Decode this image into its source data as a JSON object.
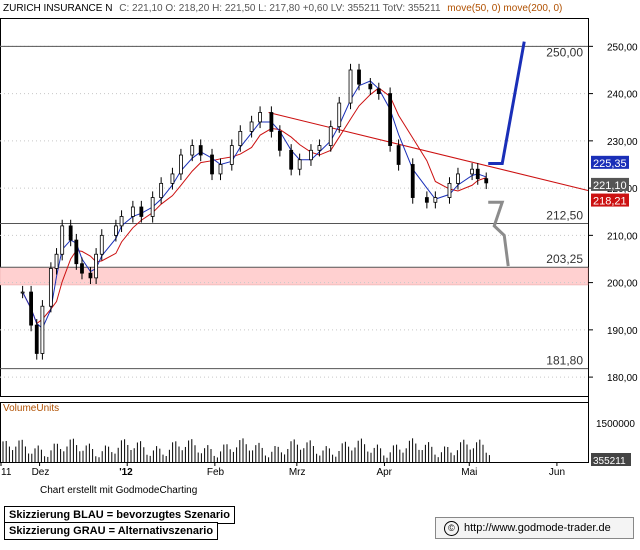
{
  "header": {
    "title": "ZURICH INSURANCE N",
    "quote": "C: 221,10 O: 218,20 H: 221,50 L: 217,80 +0,60 LV: 355211 TotV: 355211",
    "ma_labels": "move(50, 0) move(200, 0)"
  },
  "colors": {
    "candle": "#000000",
    "ma50": "#1a2fb8",
    "ma200": "#cc1111",
    "trendline": "#cc1111",
    "scenario_primary": "#1a2fb8",
    "scenario_alt": "#8c8c8c",
    "zone_fill": "#ffd0d0",
    "grid": "#c8c8c8"
  },
  "chart_data": {
    "type": "candlestick",
    "title": "ZURICH INSURANCE N",
    "ylim": [
      176,
      256
    ],
    "y_ticks": [
      180,
      190,
      200,
      210,
      220,
      230,
      240,
      250
    ],
    "x_labels": [
      "11",
      "Dez",
      "'12",
      "Feb",
      "Mrz",
      "Apr",
      "Mai",
      "Jun"
    ],
    "price_series": [
      {
        "date": "2011-11-25",
        "close": 198
      },
      {
        "date": "2011-11-28",
        "close": 191
      },
      {
        "date": "2011-11-30",
        "close": 185
      },
      {
        "date": "2011-12-02",
        "close": 195
      },
      {
        "date": "2011-12-05",
        "close": 203
      },
      {
        "date": "2011-12-07",
        "close": 206
      },
      {
        "date": "2011-12-09",
        "close": 212
      },
      {
        "date": "2011-12-12",
        "close": 209
      },
      {
        "date": "2011-12-14",
        "close": 204
      },
      {
        "date": "2011-12-16",
        "close": 202
      },
      {
        "date": "2011-12-19",
        "close": 201
      },
      {
        "date": "2011-12-21",
        "close": 206
      },
      {
        "date": "2011-12-23",
        "close": 210
      },
      {
        "date": "2011-12-28",
        "close": 212
      },
      {
        "date": "2011-12-30",
        "close": 214
      },
      {
        "date": "2012-01-03",
        "close": 216
      },
      {
        "date": "2012-01-06",
        "close": 214
      },
      {
        "date": "2012-01-10",
        "close": 218
      },
      {
        "date": "2012-01-13",
        "close": 221
      },
      {
        "date": "2012-01-17",
        "close": 223
      },
      {
        "date": "2012-01-20",
        "close": 227
      },
      {
        "date": "2012-01-24",
        "close": 229
      },
      {
        "date": "2012-01-27",
        "close": 227
      },
      {
        "date": "2012-01-31",
        "close": 223
      },
      {
        "date": "2012-02-03",
        "close": 225
      },
      {
        "date": "2012-02-07",
        "close": 229
      },
      {
        "date": "2012-02-10",
        "close": 232
      },
      {
        "date": "2012-02-14",
        "close": 234
      },
      {
        "date": "2012-02-17",
        "close": 236
      },
      {
        "date": "2012-02-21",
        "close": 232
      },
      {
        "date": "2012-02-24",
        "close": 228
      },
      {
        "date": "2012-02-28",
        "close": 224
      },
      {
        "date": "2012-03-02",
        "close": 226
      },
      {
        "date": "2012-03-06",
        "close": 228
      },
      {
        "date": "2012-03-09",
        "close": 229
      },
      {
        "date": "2012-03-13",
        "close": 233
      },
      {
        "date": "2012-03-16",
        "close": 238
      },
      {
        "date": "2012-03-20",
        "close": 245
      },
      {
        "date": "2012-03-23",
        "close": 242
      },
      {
        "date": "2012-03-27",
        "close": 241
      },
      {
        "date": "2012-03-30",
        "close": 240
      },
      {
        "date": "2012-04-03",
        "close": 229
      },
      {
        "date": "2012-04-06",
        "close": 225
      },
      {
        "date": "2012-04-11",
        "close": 218
      },
      {
        "date": "2012-04-16",
        "close": 217
      },
      {
        "date": "2012-04-19",
        "close": 218
      },
      {
        "date": "2012-04-24",
        "close": 221
      },
      {
        "date": "2012-04-27",
        "close": 223
      },
      {
        "date": "2012-05-02",
        "close": 224
      },
      {
        "date": "2012-05-04",
        "close": 222
      },
      {
        "date": "2012-05-07",
        "close": 221.1
      }
    ],
    "indicators": [
      {
        "name": "move(50, 0)",
        "last": 225.35
      },
      {
        "name": "move(200, 0)",
        "last": 218.21
      }
    ],
    "levels": [
      250,
      212.5,
      203.25,
      181.8
    ],
    "annotations": {
      "level_labels": [
        "250,00",
        "212,50",
        "203,25",
        "181,80"
      ],
      "last_close": "221,10",
      "ma50_last": "225,35",
      "ma200_last": "218,21",
      "resistance_zone": [
        199.5,
        203.25
      ]
    },
    "volume": {
      "label": "VolumeUnits",
      "tick_label": "1500000",
      "last_value": "355211"
    }
  },
  "legend": {
    "blue": "Skizzierung BLAU = bevorzugtes Szenario",
    "gray": "Skizzierung GRAU = Alternativszenario"
  },
  "footer": {
    "credit": "Chart erstellt mit GodmodeCharting",
    "url": "http://www.godmode-trader.de",
    "copyright_symbol": "©"
  }
}
